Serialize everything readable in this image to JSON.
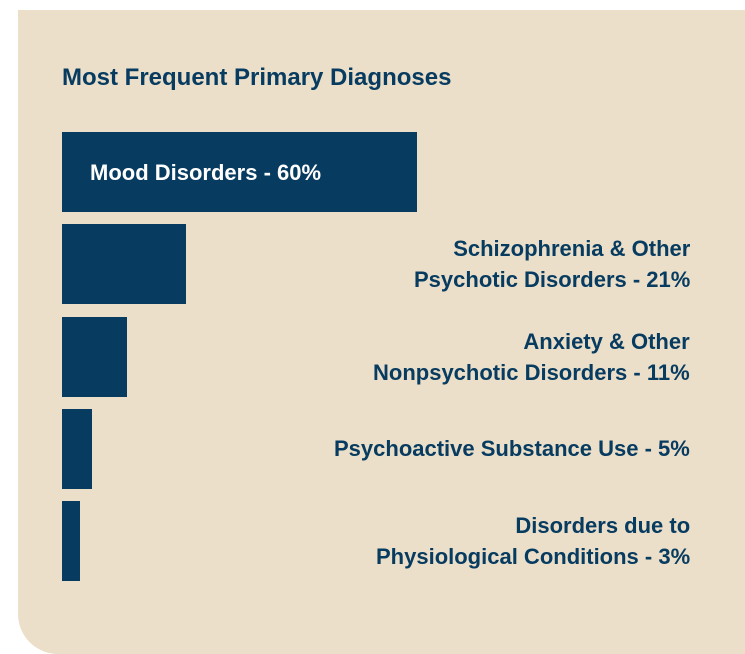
{
  "chart_data": {
    "type": "bar",
    "orientation": "horizontal",
    "title": "Most Frequent Primary Diagnoses",
    "categories": [
      "Mood Disorders - 60%",
      "Schizophrenia & Other\nPsychotic Disorders - 21%",
      "Anxiety & Other\nNonpsychotic Disorders - 11%",
      "Psychoactive Substance Use - 5%",
      "Disorders due to\nPhysiological Conditions - 3%"
    ],
    "values": [
      60,
      21,
      11,
      5,
      3
    ],
    "color": "#073b60"
  }
}
